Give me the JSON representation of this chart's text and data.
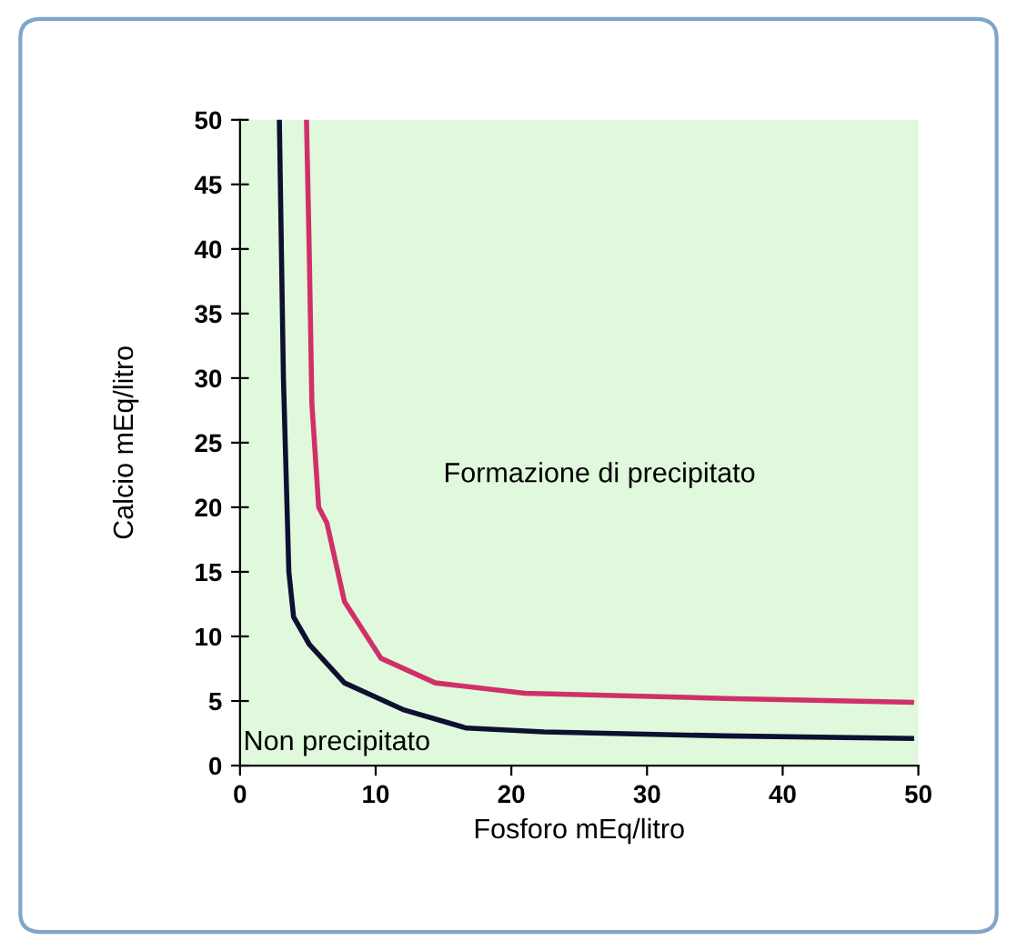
{
  "chart_data": {
    "type": "line",
    "xlabel": "Fosforo mEq/litro",
    "ylabel": "Calcio mEq/litro",
    "xlim": [
      0,
      50
    ],
    "ylim": [
      0,
      50
    ],
    "xticks": [
      0,
      10,
      20,
      30,
      40,
      50
    ],
    "yticks": [
      0,
      5,
      10,
      15,
      20,
      25,
      30,
      35,
      40,
      45,
      50
    ],
    "grid": false,
    "marker": "none",
    "line_style": "solid",
    "annotations": [
      "Formazione di precipitato",
      "Non precipitato"
    ],
    "series": [
      {
        "color": "#0d1030",
        "x": [
          2.9,
          3.2,
          3.6,
          3.95,
          5.1,
          7.7,
          12.1,
          16.7,
          22.4,
          35.7,
          49.5
        ],
        "values": [
          50,
          30,
          15,
          11.5,
          9.4,
          6.4,
          4.3,
          2.9,
          2.6,
          2.3,
          2.1
        ]
      },
      {
        "color": "#d0306a",
        "x": [
          4.9,
          5.1,
          5.3,
          5.8,
          6.4,
          7.7,
          10.4,
          14.4,
          21,
          35.7,
          49.5
        ],
        "values": [
          50,
          40,
          28,
          20,
          18.8,
          12.7,
          8.3,
          6.4,
          5.6,
          5.2,
          4.9
        ]
      }
    ]
  }
}
